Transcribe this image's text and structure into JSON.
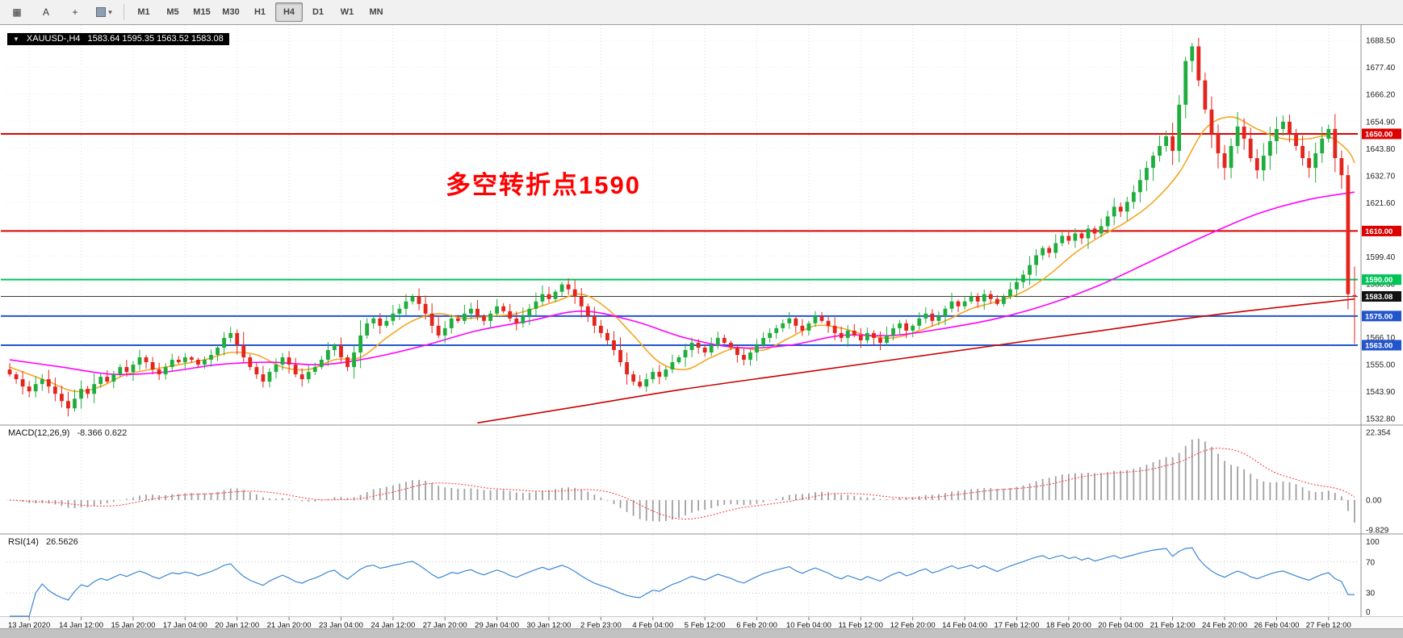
{
  "toolbar": {
    "icons": [
      {
        "name": "pattern",
        "glyph": "▦"
      },
      {
        "name": "letter-a",
        "glyph": "A"
      },
      {
        "name": "cursor",
        "glyph": "+"
      }
    ],
    "dropdown_glyph": "▾",
    "timeframes": [
      "M1",
      "M5",
      "M15",
      "M30",
      "H1",
      "H4",
      "D1",
      "W1",
      "MN"
    ],
    "active_timeframe": "H4"
  },
  "ohlc": {
    "arrow": "▼",
    "symbol": "XAUUSD-,H4",
    "values": "1583.64 1595.35 1563.52 1583.08"
  },
  "annotation": {
    "text": "多空转折点1590",
    "color": "#ff0000"
  },
  "indicator_titles": {
    "macd_name": "MACD(12,26,9)",
    "macd_values": "-8.366 0.622",
    "rsi_name": "RSI(14)",
    "rsi_value": "26.5626"
  },
  "colors": {
    "up": "#1fae3d",
    "down": "#e3251d",
    "ma_fast": "#f5a623",
    "ma_mid": "#ff00ff",
    "ma_long": "#cc0000",
    "level_red": "#dd0000",
    "level_green": "#00c457",
    "level_blue": "#2255cc",
    "bid": "#3a3a3a",
    "macd_hist": "#a0a0a0",
    "macd_signal": "#ff3333",
    "rsi": "#3a86d4",
    "grid": "#e2e2e2",
    "border": "#909090"
  },
  "chart_data": {
    "type": "candlestick",
    "symbol": "XAUUSD-",
    "timeframe": "H4",
    "bars": 208,
    "ylim": [
      1532.8,
      1688.5
    ],
    "price_tick_step": 11.1,
    "price_axis_ticks": [
      1688.5,
      1677.4,
      1666.2,
      1654.9,
      1643.8,
      1632.7,
      1621.6,
      1599.4,
      1588.3,
      1566.1,
      1555.0,
      1543.9,
      1532.8
    ],
    "time_labels": [
      "13 Jan 2020",
      "14 Jan 12:00",
      "15 Jan 20:00",
      "17 Jan 04:00",
      "20 Jan 12:00",
      "21 Jan 20:00",
      "23 Jan 04:00",
      "24 Jan 12:00",
      "27 Jan 20:00",
      "29 Jan 04:00",
      "30 Jan 12:00",
      "2 Feb 23:00",
      "4 Feb 04:00",
      "5 Feb 12:00",
      "6 Feb 20:00",
      "10 Feb 04:00",
      "11 Feb 12:00",
      "12 Feb 20:00",
      "14 Feb 04:00",
      "17 Feb 12:00",
      "18 Feb 20:00",
      "20 Feb 04:00",
      "21 Feb 12:00",
      "24 Feb 20:00",
      "26 Feb 04:00",
      "27 Feb 12:00"
    ],
    "first_label_bar": 3,
    "label_every_bars": 8,
    "closes": [
      1551,
      1549,
      1546,
      1544,
      1547,
      1549,
      1546,
      1543,
      1540,
      1537,
      1541,
      1545,
      1543,
      1547,
      1550,
      1548,
      1551,
      1554,
      1552,
      1555,
      1558,
      1556,
      1553,
      1551,
      1554,
      1557,
      1556,
      1558,
      1557,
      1555,
      1557,
      1559,
      1562,
      1566,
      1568,
      1563,
      1558,
      1554,
      1551,
      1548,
      1552,
      1555,
      1558,
      1555,
      1551,
      1549,
      1552,
      1554,
      1557,
      1561,
      1563,
      1558,
      1554,
      1560,
      1567,
      1572,
      1574,
      1571,
      1573,
      1576,
      1578,
      1581,
      1583,
      1580,
      1576,
      1571,
      1567,
      1570,
      1574,
      1573,
      1576,
      1578,
      1575,
      1573,
      1576,
      1579,
      1577,
      1574,
      1572,
      1575,
      1578,
      1581,
      1584,
      1582,
      1585,
      1588,
      1586,
      1583,
      1579,
      1575,
      1571,
      1568,
      1565,
      1561,
      1556,
      1551,
      1548,
      1546,
      1549,
      1552,
      1550,
      1553,
      1556,
      1558,
      1561,
      1564,
      1562,
      1560,
      1563,
      1566,
      1564,
      1562,
      1559,
      1557,
      1560,
      1563,
      1566,
      1568,
      1570,
      1572,
      1574,
      1571,
      1569,
      1572,
      1575,
      1573,
      1571,
      1568,
      1566,
      1569,
      1567,
      1565,
      1568,
      1566,
      1564,
      1567,
      1570,
      1572,
      1569,
      1571,
      1574,
      1576,
      1573,
      1575,
      1578,
      1581,
      1579,
      1581,
      1583,
      1581,
      1584,
      1582,
      1580,
      1583,
      1586,
      1589,
      1592,
      1596,
      1600,
      1603,
      1601,
      1605,
      1608,
      1606,
      1609,
      1607,
      1611,
      1609,
      1612,
      1616,
      1620,
      1618,
      1622,
      1626,
      1631,
      1636,
      1641,
      1645,
      1649,
      1643,
      1662,
      1680,
      1686,
      1672,
      1660,
      1650,
      1642,
      1636,
      1645,
      1653,
      1648,
      1640,
      1635,
      1641,
      1647,
      1652,
      1655,
      1650,
      1645,
      1640,
      1636,
      1642,
      1648,
      1652,
      1640,
      1633,
      1584,
      1583.08
    ],
    "first_open": 1553,
    "last_candle_ohlc": {
      "open": 1583.64,
      "high": 1595.35,
      "low": 1563.52,
      "close": 1583.08
    },
    "horizontal_levels": [
      {
        "price": 1650.0,
        "label": "1650.00",
        "color_key": "level_red"
      },
      {
        "price": 1610.0,
        "label": "1610.00",
        "color_key": "level_red"
      },
      {
        "price": 1590.0,
        "label": "1590.00",
        "color_key": "level_green"
      },
      {
        "price": 1583.08,
        "label": "1583.08",
        "color_key": "bid",
        "is_bid": true
      },
      {
        "price": 1575.0,
        "label": "1575.00",
        "color_key": "level_blue"
      },
      {
        "price": 1563.0,
        "label": "1563.00",
        "color_key": "level_blue"
      }
    ],
    "moving_averages": [
      {
        "name": "ma-fast-orange",
        "color_key": "ma_fast",
        "points": [
          [
            0,
            1554
          ],
          [
            6,
            1548
          ],
          [
            10,
            1544
          ],
          [
            14,
            1546
          ],
          [
            18,
            1551
          ],
          [
            24,
            1554
          ],
          [
            30,
            1557
          ],
          [
            34,
            1560
          ],
          [
            38,
            1559
          ],
          [
            42,
            1554
          ],
          [
            46,
            1553
          ],
          [
            50,
            1557
          ],
          [
            54,
            1558
          ],
          [
            58,
            1566
          ],
          [
            62,
            1573
          ],
          [
            66,
            1576
          ],
          [
            70,
            1574
          ],
          [
            74,
            1575
          ],
          [
            78,
            1576
          ],
          [
            84,
            1581
          ],
          [
            88,
            1584
          ],
          [
            92,
            1578
          ],
          [
            96,
            1567
          ],
          [
            100,
            1556
          ],
          [
            104,
            1553
          ],
          [
            108,
            1558
          ],
          [
            112,
            1562
          ],
          [
            116,
            1561
          ],
          [
            120,
            1566
          ],
          [
            124,
            1571
          ],
          [
            128,
            1570
          ],
          [
            132,
            1567
          ],
          [
            136,
            1566
          ],
          [
            140,
            1569
          ],
          [
            144,
            1573
          ],
          [
            148,
            1578
          ],
          [
            152,
            1581
          ],
          [
            156,
            1585
          ],
          [
            160,
            1592
          ],
          [
            164,
            1601
          ],
          [
            168,
            1608
          ],
          [
            172,
            1614
          ],
          [
            176,
            1622
          ],
          [
            180,
            1634
          ],
          [
            184,
            1652
          ],
          [
            188,
            1657
          ],
          [
            192,
            1652
          ],
          [
            196,
            1648
          ],
          [
            200,
            1648
          ],
          [
            203,
            1649
          ],
          [
            206,
            1643
          ],
          [
            207,
            1638
          ]
        ]
      },
      {
        "name": "ma-mid-magenta",
        "color_key": "ma_mid",
        "points": [
          [
            0,
            1557
          ],
          [
            8,
            1554
          ],
          [
            16,
            1551
          ],
          [
            24,
            1552
          ],
          [
            32,
            1555
          ],
          [
            40,
            1556
          ],
          [
            48,
            1555
          ],
          [
            56,
            1558
          ],
          [
            64,
            1563
          ],
          [
            72,
            1569
          ],
          [
            80,
            1573
          ],
          [
            88,
            1577
          ],
          [
            96,
            1573
          ],
          [
            104,
            1566
          ],
          [
            112,
            1562
          ],
          [
            120,
            1563
          ],
          [
            128,
            1567
          ],
          [
            136,
            1567
          ],
          [
            144,
            1570
          ],
          [
            152,
            1574
          ],
          [
            160,
            1580
          ],
          [
            168,
            1588
          ],
          [
            176,
            1598
          ],
          [
            184,
            1608
          ],
          [
            192,
            1617
          ],
          [
            200,
            1623
          ],
          [
            207,
            1626
          ]
        ]
      },
      {
        "name": "ma-long-red",
        "color_key": "ma_long",
        "points": [
          [
            72,
            1531
          ],
          [
            88,
            1538
          ],
          [
            104,
            1545
          ],
          [
            120,
            1551
          ],
          [
            136,
            1557
          ],
          [
            152,
            1563
          ],
          [
            168,
            1569
          ],
          [
            184,
            1575
          ],
          [
            200,
            1580
          ],
          [
            207,
            1582
          ]
        ]
      }
    ],
    "macd": {
      "fast": 12,
      "slow": 26,
      "signal": 9,
      "current_main": -8.366,
      "current_signal": 0.622,
      "axis_ticks": [
        22.354,
        0.0,
        -9.829
      ]
    },
    "rsi": {
      "period": 14,
      "current": 26.5626,
      "axis_ticks": [
        100,
        70,
        30,
        0
      ],
      "levels": [
        70,
        30
      ]
    }
  }
}
